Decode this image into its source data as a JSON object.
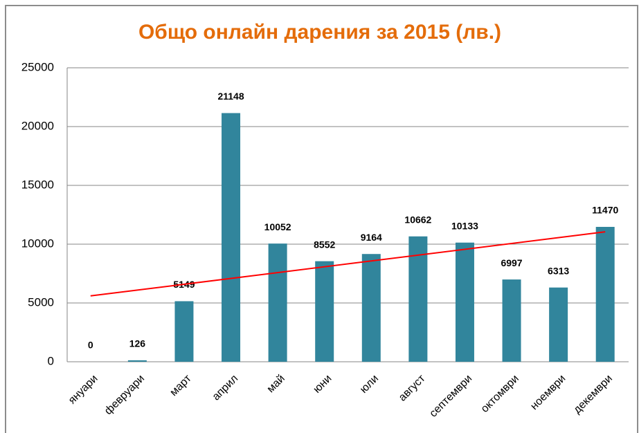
{
  "chart_data": {
    "type": "bar",
    "title": "Общо онлайн дарения за 2015 (лв.)",
    "categories": [
      "януари",
      "февруари",
      "март",
      "април",
      "май",
      "юни",
      "юли",
      "август",
      "септември",
      "октомври",
      "ноември",
      "декември"
    ],
    "values": [
      0,
      126,
      5149,
      21148,
      10052,
      8552,
      9164,
      10662,
      10133,
      6997,
      6313,
      11470
    ],
    "color": "#31859c",
    "ylim": [
      0,
      25000
    ],
    "yticks": [
      0,
      5000,
      10000,
      15000,
      20000,
      25000
    ],
    "grid": true,
    "trendline": {
      "color": "#ff0000",
      "start": 5600,
      "end": 11050
    }
  }
}
